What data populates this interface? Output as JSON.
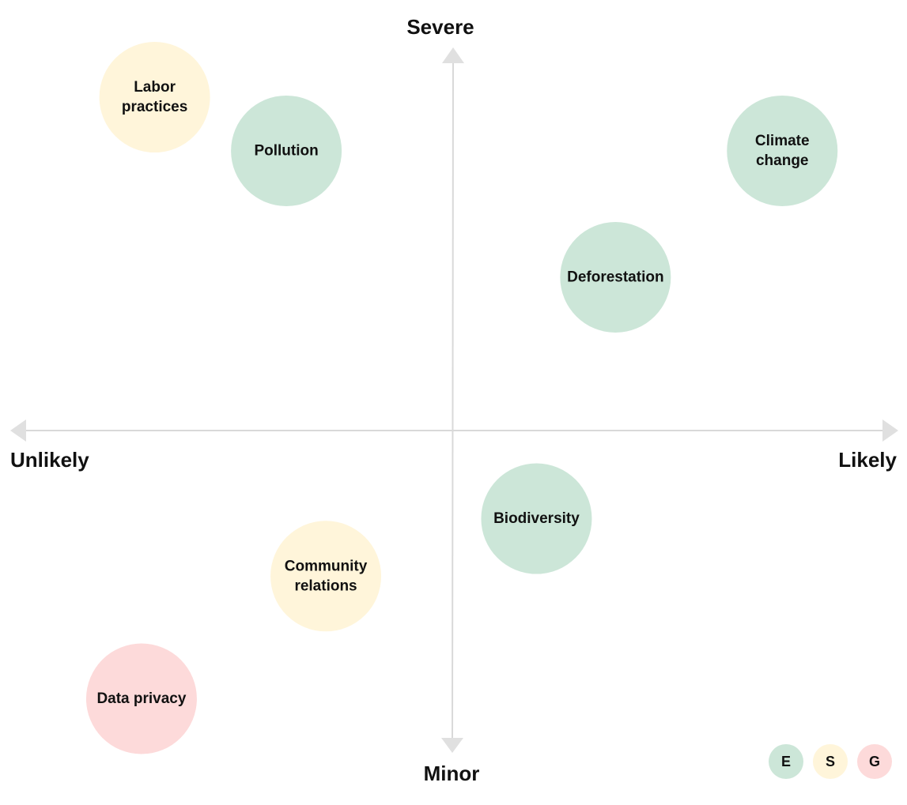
{
  "axes": {
    "top": "Severe",
    "bottom": "Minor",
    "left": "Unlikely",
    "right": "Likely"
  },
  "colors": {
    "E": "#cce6d8",
    "S": "#fff5da",
    "G": "#fddada",
    "axis": "#d9d9d9",
    "arrow": "#e0e0e0"
  },
  "risks": [
    {
      "label": [
        "Labor",
        "practices"
      ],
      "category": "S",
      "likelihood": -0.68,
      "severity": 0.87
    },
    {
      "label": [
        "Pollution"
      ],
      "category": "E",
      "likelihood": -0.38,
      "severity": 0.73
    },
    {
      "label": [
        "Climate",
        "change"
      ],
      "category": "E",
      "likelihood": 0.75,
      "severity": 0.73
    },
    {
      "label": [
        "Deforestation"
      ],
      "category": "E",
      "likelihood": 0.37,
      "severity": 0.4
    },
    {
      "label": [
        "Biodiversity"
      ],
      "category": "E",
      "likelihood": 0.19,
      "severity": -0.23
    },
    {
      "label": [
        "Community",
        "relations"
      ],
      "category": "S",
      "likelihood": -0.29,
      "severity": -0.38
    },
    {
      "label": [
        "Data privacy"
      ],
      "category": "G",
      "likelihood": -0.71,
      "severity": -0.7
    }
  ],
  "legend": [
    "E",
    "S",
    "G"
  ]
}
